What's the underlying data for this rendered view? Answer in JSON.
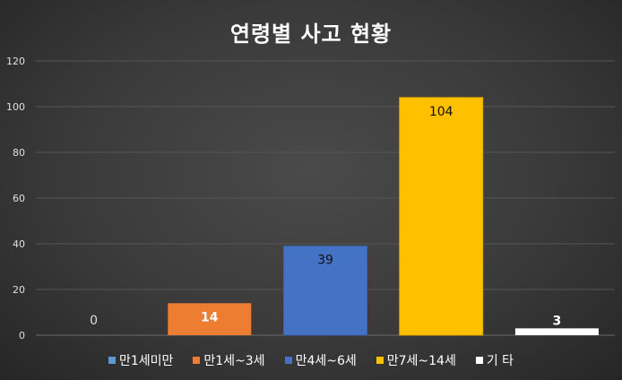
{
  "chart_data": {
    "type": "bar",
    "title": "연령별 사고 현황",
    "categories": [
      "만1세미만",
      "만1세~3세",
      "만4세~6세",
      "만7세~14세",
      "기 타"
    ],
    "values": [
      0,
      14,
      39,
      104,
      3
    ],
    "colors": [
      "#5b9bd5",
      "#ed7d31",
      "#4472c4",
      "#ffc000",
      "#ffffff"
    ],
    "label_colors": [
      "#dddddd",
      "#ffffff",
      "#111111",
      "#111111",
      "#ffffff"
    ],
    "ylim": [
      0,
      120
    ],
    "yticks": [
      0,
      20,
      40,
      60,
      80,
      100,
      120
    ],
    "grid": true,
    "legend_position": "bottom"
  }
}
